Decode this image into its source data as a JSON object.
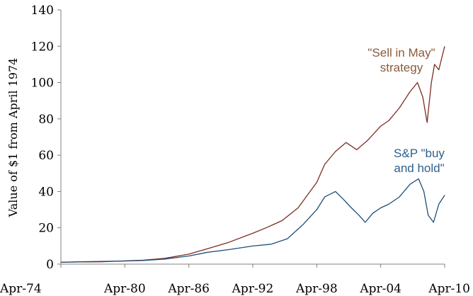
{
  "chart_data": {
    "type": "line",
    "title": "",
    "xlabel": "",
    "ylabel": "Value of $1 from April 1974",
    "x_ticks": [
      "Apr-74",
      "Apr-80",
      "Apr-86",
      "Apr-92",
      "Apr-98",
      "Apr-04",
      "Apr-10"
    ],
    "y_ticks": [
      "0",
      "20",
      "40",
      "60",
      "80",
      "100",
      "120",
      "140"
    ],
    "xlim": [
      1974.25,
      2010.25
    ],
    "ylim": [
      0,
      140
    ],
    "grid": false,
    "legend": "none",
    "annotations": [
      {
        "lines": [
          "\"Sell in May\"",
          "strategy"
        ],
        "series": 0
      },
      {
        "lines": [
          "S&P \"buy",
          "and hold\""
        ],
        "series": 1
      }
    ],
    "series": [
      {
        "color": "#7b2e22",
        "annotation_color": "#8a5a3a",
        "x": [
          1974.25,
          1976.0,
          1978.0,
          1980.25,
          1982.0,
          1984.0,
          1986.25,
          1988.0,
          1990.0,
          1992.25,
          1993.5,
          1995.0,
          1996.5,
          1998.25,
          1999.0,
          2000.0,
          2001.0,
          2002.0,
          2003.0,
          2004.25,
          2005.0,
          2006.0,
          2007.0,
          2007.7,
          2008.2,
          2008.6,
          2009.0,
          2009.3,
          2009.7,
          2010.25
        ],
        "values": [
          1,
          1.2,
          1.3,
          1.8,
          2.2,
          3.2,
          5.5,
          8.5,
          12,
          17,
          20,
          24,
          31,
          45,
          55,
          62,
          67,
          63,
          68,
          76,
          79,
          86,
          95,
          100,
          92,
          78,
          100,
          110,
          107,
          120
        ]
      },
      {
        "color": "#1f4e79",
        "annotation_color": "#2f5f8f",
        "x": [
          1974.25,
          1976.0,
          1978.0,
          1980.25,
          1982.0,
          1984.0,
          1986.25,
          1988.0,
          1990.0,
          1992.25,
          1994.0,
          1995.5,
          1997.0,
          1998.25,
          1999.0,
          2000.0,
          2000.7,
          2001.5,
          2002.2,
          2002.8,
          2003.5,
          2004.25,
          2005.0,
          2006.0,
          2007.0,
          2007.8,
          2008.3,
          2008.7,
          2009.2,
          2009.7,
          2010.25
        ],
        "values": [
          1,
          1.3,
          1.5,
          1.7,
          2.0,
          2.8,
          4.5,
          6.5,
          8,
          10,
          11,
          14,
          22,
          30,
          37,
          40,
          36,
          31,
          27,
          23,
          28,
          31,
          33,
          37,
          44,
          47,
          40,
          27,
          23,
          33,
          38
        ]
      }
    ]
  }
}
